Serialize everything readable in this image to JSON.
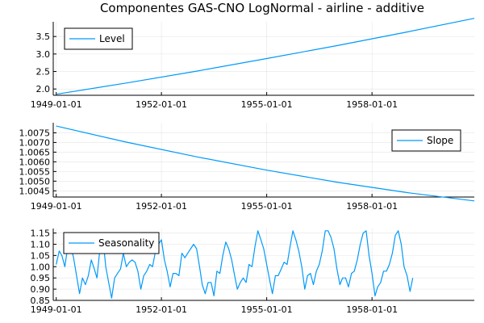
{
  "title": "Componentes GAS-CNO LogNormal - airline - additive",
  "line_color": "#009AFA",
  "chart_data": [
    {
      "type": "line",
      "legend": "Level",
      "legend_position": "top-left",
      "grid": true,
      "x_ticks": [
        "1949-01-01",
        "1952-01-01",
        "1955-01-01",
        "1958-01-01"
      ],
      "y_ticks": [
        "2.0",
        "2.5",
        "3.0",
        "3.5"
      ],
      "xlim": [
        "1948-12-01",
        "1960-12-01"
      ],
      "ylim": [
        1.82,
        3.92
      ],
      "series": [
        {
          "x": [
            "1949-01-01",
            "1951-01-01",
            "1953-01-01",
            "1955-01-01",
            "1957-01-01",
            "1959-01-01",
            "1960-12-01"
          ],
          "values": [
            1.85,
            2.17,
            2.51,
            2.87,
            3.24,
            3.63,
            4.02
          ]
        }
      ]
    },
    {
      "type": "line",
      "legend": "Slope",
      "legend_position": "top-right",
      "grid": true,
      "x_ticks": [
        "1949-01-01",
        "1952-01-01",
        "1955-01-01",
        "1958-01-01"
      ],
      "y_ticks": [
        "1.0045",
        "1.0050",
        "1.0055",
        "1.0060",
        "1.0065",
        "1.0070",
        "1.0075"
      ],
      "xlim": [
        "1948-12-01",
        "1960-12-01"
      ],
      "ylim": [
        1.00418,
        1.00802
      ],
      "series": [
        {
          "x": [
            "1949-01-01",
            "1951-01-01",
            "1953-01-01",
            "1955-01-01",
            "1957-01-01",
            "1959-01-01",
            "1960-12-01"
          ],
          "values": [
            1.00785,
            1.00702,
            1.00626,
            1.00557,
            1.00495,
            1.00441,
            1.00398
          ]
        }
      ]
    },
    {
      "type": "line",
      "legend": "Seasonality",
      "legend_position": "top-left",
      "grid": true,
      "x_ticks": [
        "1949-01-01",
        "1952-01-01",
        "1955-01-01",
        "1958-01-01"
      ],
      "y_ticks": [
        "0.85",
        "0.90",
        "0.95",
        "1.00",
        "1.05",
        "1.10",
        "1.15"
      ],
      "xlim": [
        "1948-12-01",
        "1960-12-01"
      ],
      "ylim": [
        0.85,
        1.17
      ],
      "series": [
        {
          "x_start": "1949-01-01",
          "freq": "monthly",
          "values": [
            1.01,
            1.07,
            1.05,
            1.0,
            1.09,
            1.09,
            1.04,
            0.96,
            0.88,
            0.95,
            0.92,
            0.96,
            1.03,
            0.99,
            0.95,
            1.08,
            1.13,
            1.0,
            0.93,
            0.86,
            0.95,
            0.97,
            0.99,
            1.06,
            1.0,
            1.02,
            1.03,
            1.02,
            0.98,
            0.9,
            0.96,
            0.98,
            1.01,
            1.0,
            1.07,
            1.1,
            1.12,
            1.03,
            0.98,
            0.91,
            0.97,
            0.97,
            0.96,
            1.06,
            1.04,
            1.06,
            1.08,
            1.1,
            1.08,
            1.0,
            0.92,
            0.88,
            0.93,
            0.93,
            0.87,
            0.98,
            0.97,
            1.05,
            1.11,
            1.08,
            1.03,
            0.96,
            0.9,
            0.93,
            0.95,
            0.93,
            1.01,
            1.0,
            1.09,
            1.16,
            1.12,
            1.08,
            1.01,
            0.94,
            0.88,
            0.96,
            0.96,
            0.99,
            1.02,
            1.01,
            1.09,
            1.16,
            1.12,
            1.07,
            1.0,
            0.9,
            0.96,
            0.97,
            0.92,
            0.98,
            1.01,
            1.07,
            1.16,
            1.16,
            1.13,
            1.08,
            0.99,
            0.92,
            0.95,
            0.95,
            0.91,
            0.97,
            0.98,
            1.03,
            1.1,
            1.15,
            1.16,
            1.05,
            0.97,
            0.87,
            0.91,
            0.93,
            0.98,
            0.98,
            1.01,
            1.06,
            1.14,
            1.16,
            1.1,
            1.0,
            0.96,
            0.89,
            0.95
          ]
        }
      ]
    }
  ]
}
